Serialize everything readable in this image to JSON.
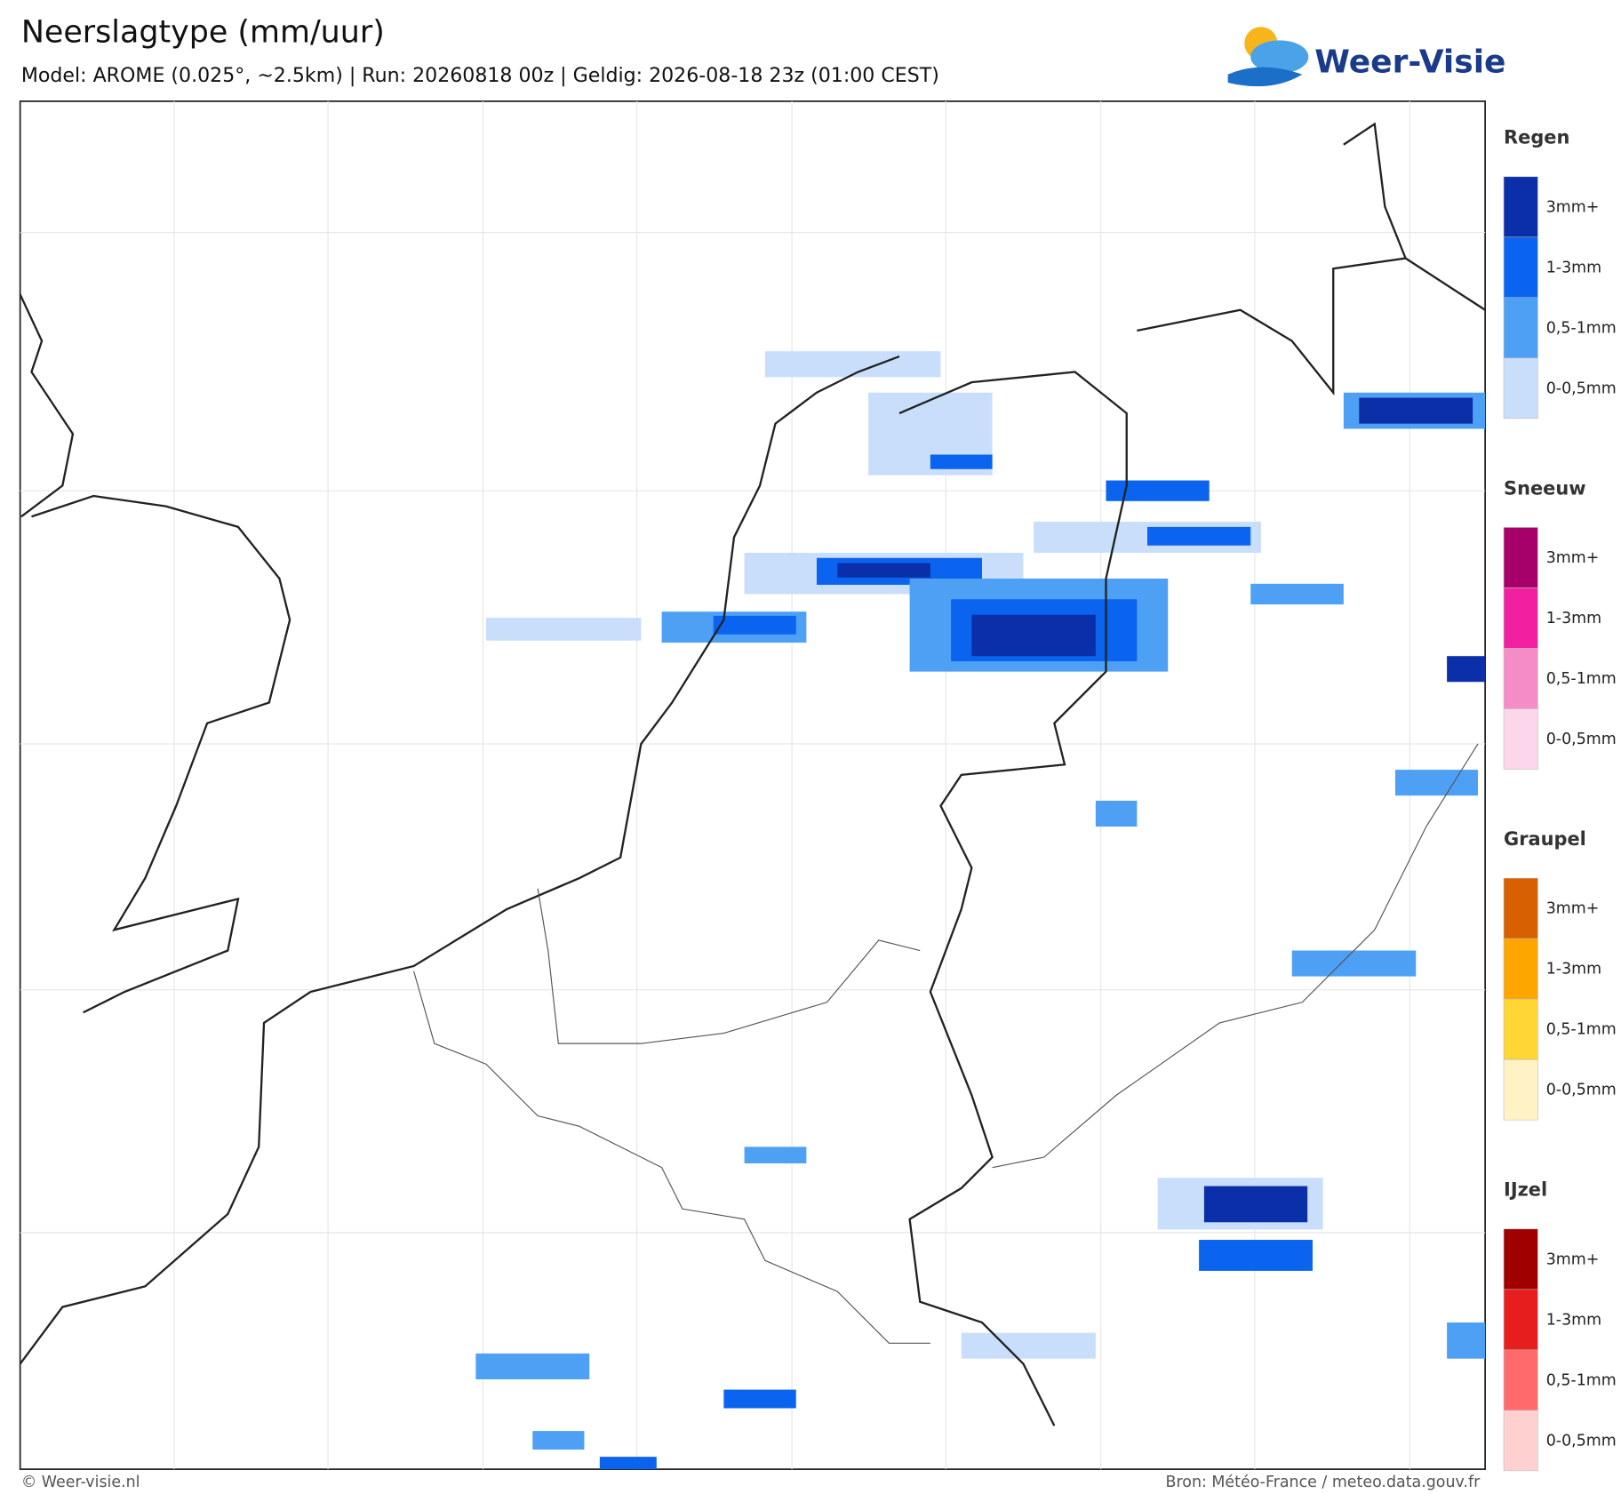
{
  "header": {
    "title": "Neerslagtype (mm/uur)",
    "subtitle": "Model: AROME (0.025°, ~2.5km)  |  Run: 20260818 00z  |  Geldig: 2026-08-18 23z (01:00 CEST)",
    "logo": "Weer-Visie"
  },
  "legend": [
    {
      "title": "Regen",
      "items": [
        {
          "label": "3mm+",
          "color": "#0a2fa8"
        },
        {
          "label": "1-3mm",
          "color": "#0a64f0"
        },
        {
          "label": "0,5-1mm",
          "color": "#4ea0f5"
        },
        {
          "label": "0-0,5mm",
          "color": "#c8defa"
        }
      ]
    },
    {
      "title": "Sneeuw",
      "items": [
        {
          "label": "3mm+",
          "color": "#a8006a"
        },
        {
          "label": "1-3mm",
          "color": "#f020a0"
        },
        {
          "label": "0,5-1mm",
          "color": "#f58cc8"
        },
        {
          "label": "0-0,5mm",
          "color": "#fcd6ea"
        }
      ]
    },
    {
      "title": "Graupel",
      "items": [
        {
          "label": "3mm+",
          "color": "#d96000"
        },
        {
          "label": "1-3mm",
          "color": "#ffa500"
        },
        {
          "label": "0,5-1mm",
          "color": "#ffd633"
        },
        {
          "label": "0-0,5mm",
          "color": "#fff2c4"
        }
      ]
    },
    {
      "title": "IJzel",
      "items": [
        {
          "label": "3mm+",
          "color": "#a00000"
        },
        {
          "label": "1-3mm",
          "color": "#e61e1e"
        },
        {
          "label": "0,5-1mm",
          "color": "#ff6b6b"
        },
        {
          "label": "0-0,5mm",
          "color": "#ffd0d0"
        }
      ]
    }
  ],
  "footer": {
    "left": "© Weer-visie.nl",
    "right": "Bron: Météo-France / meteo.data.gouv.fr"
  }
}
